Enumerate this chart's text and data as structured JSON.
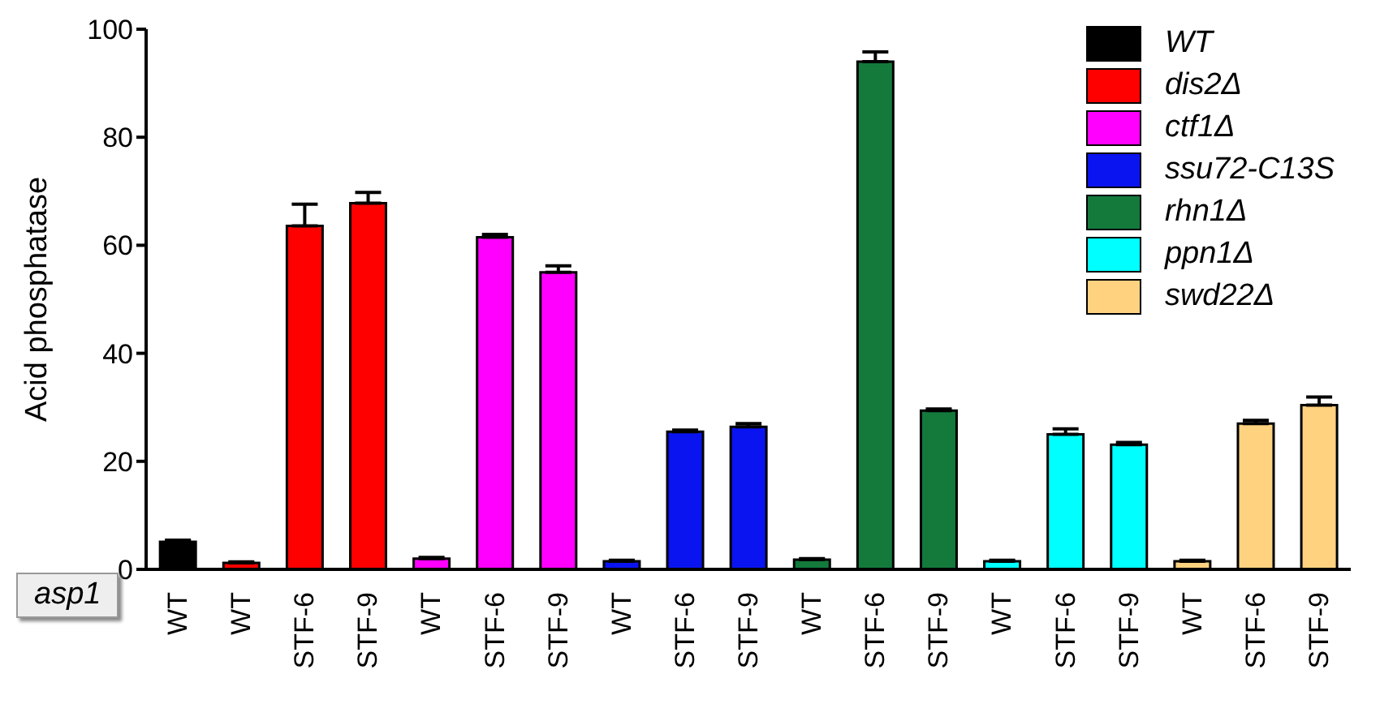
{
  "chart_data": {
    "type": "bar",
    "ylabel": "Acid phosphatase",
    "categories": [
      "WT",
      "WT",
      "STF-6",
      "STF-9",
      "WT",
      "STF-6",
      "STF-9",
      "WT",
      "STF-6",
      "STF-9",
      "WT",
      "STF-6",
      "STF-9",
      "WT",
      "STF-6",
      "STF-9",
      "WT",
      "STF-6",
      "STF-9"
    ],
    "stacked": true,
    "ylim": [
      0,
      100
    ],
    "yticks": [
      0,
      20,
      40,
      60,
      80,
      100
    ],
    "grid": false,
    "legend": "top right",
    "annotations": [
      "asp1"
    ],
    "series": [
      {
        "name": "WT",
        "color": "#000000",
        "values": [
          5.1,
          null,
          null,
          null,
          null,
          null,
          null,
          null,
          null,
          null,
          null,
          null,
          null,
          null,
          null,
          null,
          null,
          null,
          null
        ],
        "errors": [
          0.3,
          null,
          null,
          null,
          null,
          null,
          null,
          null,
          null,
          null,
          null,
          null,
          null,
          null,
          null,
          null,
          null,
          null,
          null
        ]
      },
      {
        "name": "dis2Δ",
        "color": "#ff0000",
        "values": [
          null,
          1.2,
          63.6,
          67.8,
          null,
          null,
          null,
          null,
          null,
          null,
          null,
          null,
          null,
          null,
          null,
          null,
          null,
          null,
          null
        ],
        "errors": [
          null,
          0.2,
          4,
          2,
          null,
          null,
          null,
          null,
          null,
          null,
          null,
          null,
          null,
          null,
          null,
          null,
          null,
          null,
          null
        ]
      },
      {
        "name": "ctf1Δ",
        "color": "#ff00ff",
        "values": [
          null,
          null,
          null,
          null,
          2,
          61.5,
          55,
          null,
          null,
          null,
          null,
          null,
          null,
          null,
          null,
          null,
          null,
          null,
          null
        ],
        "errors": [
          null,
          null,
          null,
          null,
          0.2,
          0.5,
          1.2,
          null,
          null,
          null,
          null,
          null,
          null,
          null,
          null,
          null,
          null,
          null,
          null
        ]
      },
      {
        "name": "ssu72-C13S",
        "color": "#0a14f0",
        "values": [
          null,
          null,
          null,
          null,
          null,
          null,
          null,
          1.5,
          25.5,
          26.4,
          null,
          null,
          null,
          null,
          null,
          null,
          null,
          null,
          null
        ],
        "errors": [
          null,
          null,
          null,
          null,
          null,
          null,
          null,
          0.2,
          0.3,
          0.6,
          null,
          null,
          null,
          null,
          null,
          null,
          null,
          null,
          null
        ]
      },
      {
        "name": "rhn1Δ",
        "color": "#137a3c",
        "values": [
          null,
          null,
          null,
          null,
          null,
          null,
          null,
          null,
          null,
          null,
          1.8,
          94,
          29.4,
          null,
          null,
          null,
          null,
          null,
          null
        ],
        "errors": [
          null,
          null,
          null,
          null,
          null,
          null,
          null,
          null,
          null,
          null,
          0.2,
          1.8,
          0.3,
          null,
          null,
          null,
          null,
          null,
          null
        ]
      },
      {
        "name": "ppn1Δ",
        "color": "#00ffff",
        "values": [
          null,
          null,
          null,
          null,
          null,
          null,
          null,
          null,
          null,
          null,
          null,
          null,
          null,
          1.5,
          25,
          23.1,
          null,
          null,
          null
        ],
        "errors": [
          null,
          null,
          null,
          null,
          null,
          null,
          null,
          null,
          null,
          null,
          null,
          null,
          null,
          0.2,
          1,
          0.4,
          null,
          null,
          null
        ]
      },
      {
        "name": "swd22Δ",
        "color": "#ffd27f",
        "values": [
          null,
          null,
          null,
          null,
          null,
          null,
          null,
          null,
          null,
          null,
          null,
          null,
          null,
          null,
          null,
          null,
          1.5,
          27,
          30.4
        ],
        "errors": [
          null,
          null,
          null,
          null,
          null,
          null,
          null,
          null,
          null,
          null,
          null,
          null,
          null,
          null,
          null,
          null,
          0.2,
          0.6,
          1.5
        ]
      }
    ]
  }
}
